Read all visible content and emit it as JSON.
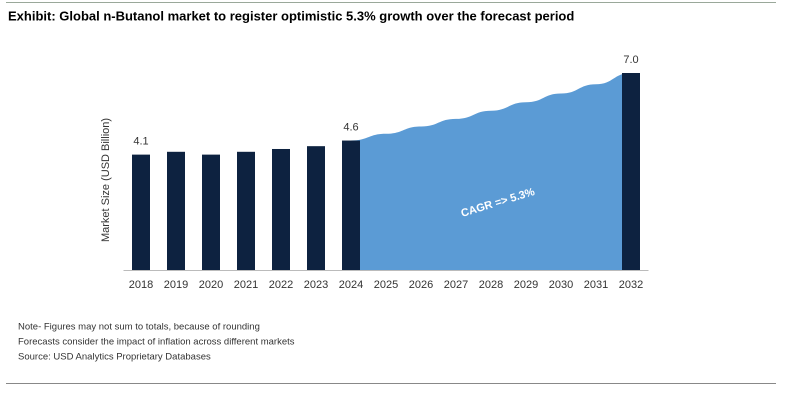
{
  "chart_data": {
    "type": "bar",
    "title": "Exhibit: Global n-Butanol market to register optimistic 5.3% growth over the forecast period",
    "y_label": "Market Size (USD Billion)",
    "categories": [
      "2018",
      "2019",
      "2020",
      "2021",
      "2022",
      "2023",
      "2024",
      "2025",
      "2026",
      "2027",
      "2028",
      "2029",
      "2030",
      "2031",
      "2032"
    ],
    "series": [
      {
        "type": "bar",
        "color": "#0d2240",
        "values": [
          4.1,
          4.2,
          4.1,
          4.2,
          4.3,
          4.4,
          4.6,
          null,
          null,
          null,
          null,
          null,
          null,
          null,
          7.0
        ],
        "value_labels": [
          "4.1",
          null,
          null,
          null,
          null,
          null,
          "4.6",
          null,
          null,
          null,
          null,
          null,
          null,
          null,
          "7.0"
        ]
      },
      {
        "type": "area",
        "color": "#5b9bd5",
        "values": [
          null,
          null,
          null,
          null,
          null,
          null,
          4.6,
          4.84,
          5.1,
          5.37,
          5.66,
          5.96,
          6.27,
          6.6,
          7.0
        ]
      }
    ],
    "annotation": "CAGR =>  5.3%",
    "ylim": [
      0,
      7.0
    ],
    "notes": [
      "Note- Figures may not sum to totals, because of rounding",
      "Forecasts consider the impact of inflation across different markets",
      "Source: USD Analytics Proprietary Databases"
    ]
  }
}
